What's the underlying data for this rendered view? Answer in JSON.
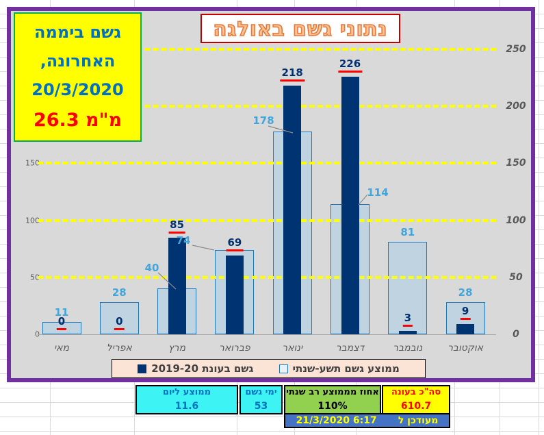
{
  "chart_data": {
    "type": "bar",
    "title": "נתוני גשם באולגה",
    "categories": [
      "מאי",
      "אפריל",
      "מרץ",
      "פברואר",
      "ינואר",
      "דצמבר",
      "נובמבר",
      "אוקטובר"
    ],
    "series": [
      {
        "name": "גשם בעונת 2019-20",
        "values": [
          0,
          0,
          85,
          69,
          218,
          226,
          3,
          9
        ],
        "color": "#003371"
      },
      {
        "name": "ממוצע גשם תשע-שנתי",
        "values": [
          11,
          28,
          40,
          74,
          178,
          114,
          81,
          28
        ],
        "color": "#BFD4E0",
        "border": "#1F78BE"
      }
    ],
    "ylim": [
      0,
      250
    ],
    "yticks_left": [
      0,
      50,
      100,
      150
    ],
    "yticks_right": [
      0,
      50,
      100,
      150,
      200,
      250
    ],
    "grid": "dashed horizontal yellow at 50,100,150,200,250",
    "legend_position": "bottom"
  },
  "infobox": {
    "line1": "גשם ביממה",
    "line2": "האחרונה,",
    "line3": "20/3/2020",
    "amount": "26.3 מ\"מ"
  },
  "table": {
    "cells": [
      {
        "label": "ממוצע ליום",
        "value": "11.6"
      },
      {
        "label": "ימי גשם",
        "value": "53"
      },
      {
        "label": "אחוז מממוצע רב שנתי",
        "value": "110%"
      },
      {
        "label": "סה\"כ בעונה",
        "value": "610.7"
      }
    ],
    "updated_label": "מעודכן ל",
    "updated_value": "21/3/2020 6:17"
  },
  "colors": {
    "chart_bg": "#D9D9D9",
    "chart_frame": "#7030A0",
    "grid_yellow": "#FFFF00",
    "dark_series": "#003371",
    "light_series_fill": "#BFD4E0",
    "light_series_border": "#1F78BE",
    "light_label": "#3FA6DE",
    "dark_label": "#002F6E",
    "label_underline": "#FF0000",
    "axis_text": "#595959",
    "title_border": "#C00000",
    "title_text": "#ED7D31",
    "infobox_bg": "#FFFF00",
    "infobox_border": "#00B050",
    "legend_bg": "#FBE4D5",
    "cyan_cell": "#3DF3F3",
    "green_cell": "#92D050",
    "yellow_cell": "#FFFF00",
    "updated_row_bg": "#4472C4"
  }
}
